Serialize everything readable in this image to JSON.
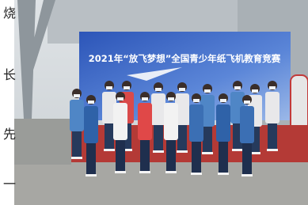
{
  "banner": {
    "title": "2021年“放飞梦想”全国青少年纸飞机教育竞赛"
  },
  "side_text": [
    "烧",
    "长",
    "先",
    "一"
  ]
}
